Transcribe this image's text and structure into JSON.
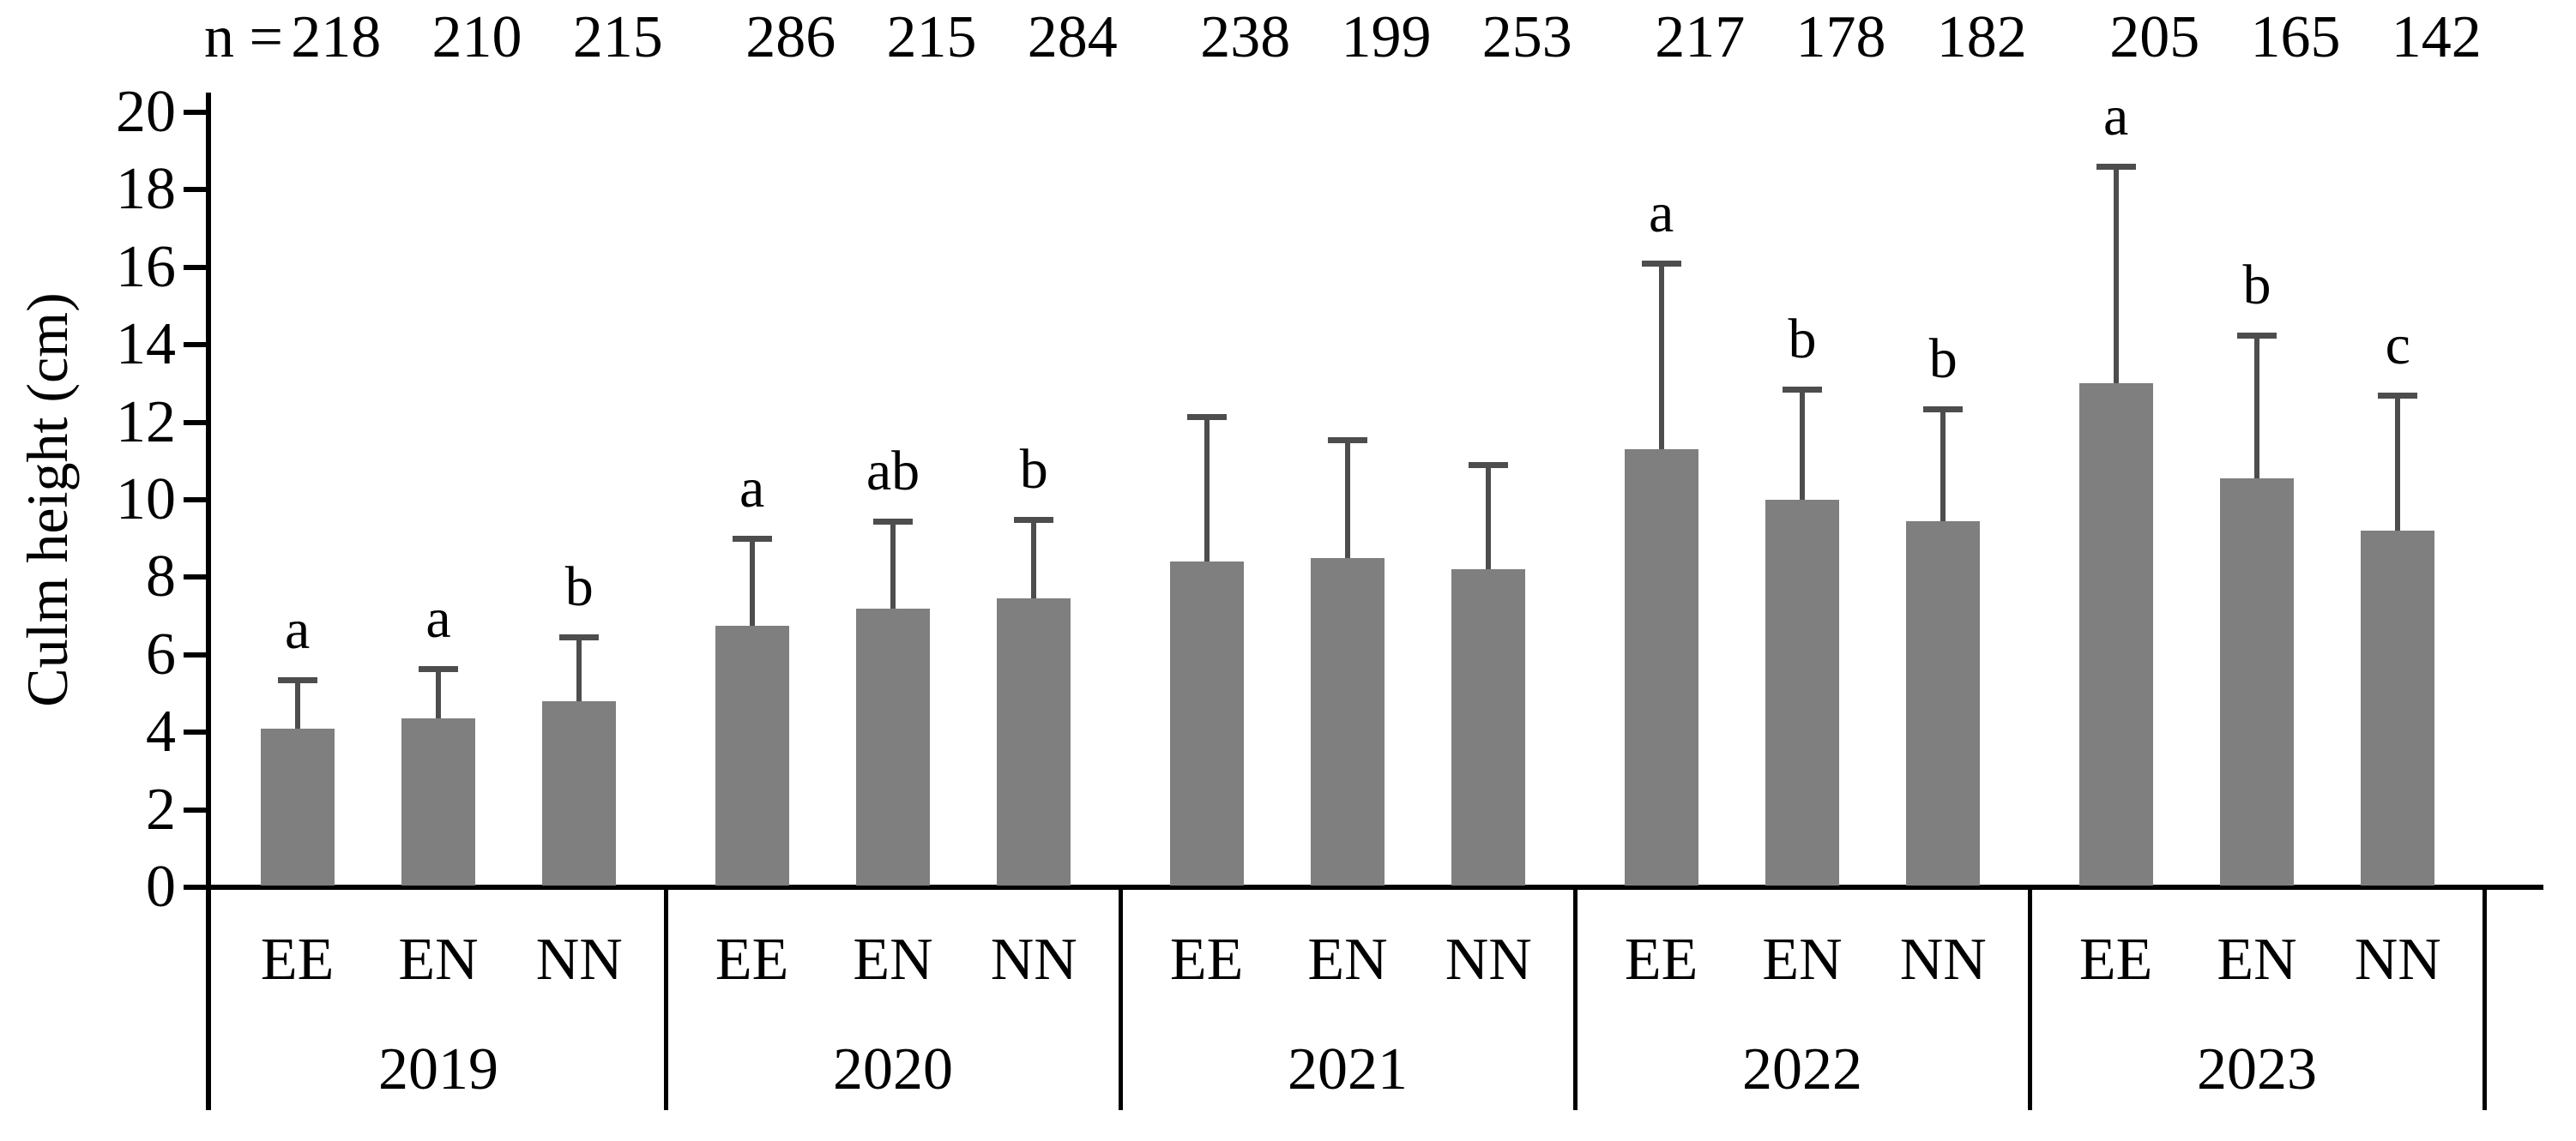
{
  "chart_data": {
    "type": "bar",
    "title": "",
    "ylabel": "Culm height (cm)",
    "xlabel": "",
    "ylim": [
      0,
      20
    ],
    "yticks": [
      0,
      2,
      4,
      6,
      8,
      10,
      12,
      14,
      16,
      18,
      20
    ],
    "grid": "off",
    "legend": "none",
    "n_prefix": "n =",
    "categories_per_group": [
      "EE",
      "EN",
      "NN"
    ],
    "groups": [
      {
        "year": "2019",
        "bars": [
          {
            "label": "EE",
            "n": "218",
            "mean": 4.1,
            "error_top": 5.35,
            "letter": "a"
          },
          {
            "label": "EN",
            "n": "210",
            "mean": 4.35,
            "error_top": 5.65,
            "letter": "a"
          },
          {
            "label": "NN",
            "n": "215",
            "mean": 4.8,
            "error_top": 6.45,
            "letter": "b"
          }
        ]
      },
      {
        "year": "2020",
        "bars": [
          {
            "label": "EE",
            "n": "286",
            "mean": 6.75,
            "error_top": 9.0,
            "letter": "a"
          },
          {
            "label": "EN",
            "n": "215",
            "mean": 7.2,
            "error_top": 9.45,
            "letter": "ab"
          },
          {
            "label": "NN",
            "n": "284",
            "mean": 7.45,
            "error_top": 9.5,
            "letter": "b"
          }
        ]
      },
      {
        "year": "2021",
        "bars": [
          {
            "label": "EE",
            "n": "238",
            "mean": 8.4,
            "error_top": 12.15,
            "letter": ""
          },
          {
            "label": "EN",
            "n": "199",
            "mean": 8.5,
            "error_top": 11.55,
            "letter": ""
          },
          {
            "label": "NN",
            "n": "253",
            "mean": 8.2,
            "error_top": 10.9,
            "letter": ""
          }
        ]
      },
      {
        "year": "2022",
        "bars": [
          {
            "label": "EE",
            "n": "217",
            "mean": 11.3,
            "error_top": 16.1,
            "letter": "a"
          },
          {
            "label": "EN",
            "n": "178",
            "mean": 10.0,
            "error_top": 12.85,
            "letter": "b"
          },
          {
            "label": "NN",
            "n": "182",
            "mean": 9.45,
            "error_top": 12.35,
            "letter": "b"
          }
        ]
      },
      {
        "year": "2023",
        "bars": [
          {
            "label": "EE",
            "n": "205",
            "mean": 13.0,
            "error_top": 18.6,
            "letter": "a"
          },
          {
            "label": "EN",
            "n": "165",
            "mean": 10.55,
            "error_top": 14.25,
            "letter": "b"
          },
          {
            "label": "NN",
            "n": "142",
            "mean": 9.2,
            "error_top": 12.7,
            "letter": "c"
          }
        ]
      }
    ],
    "colors": {
      "bar_fill": "#7f7f7f",
      "error_bar": "#4d4d4d",
      "axis": "#000000",
      "text": "#000000",
      "background": "#ffffff"
    }
  }
}
